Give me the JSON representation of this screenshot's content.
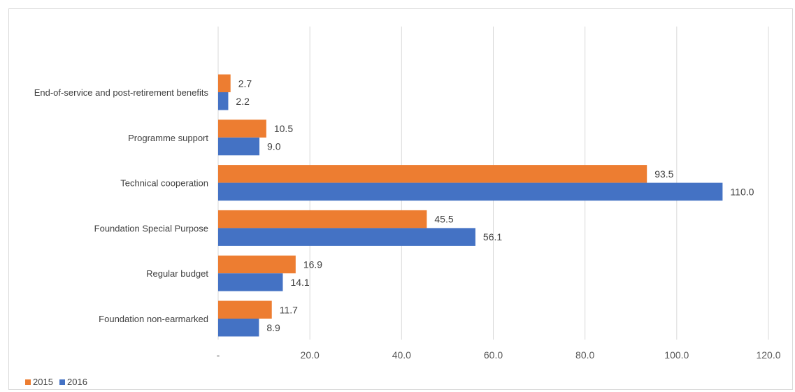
{
  "chart_data": {
    "type": "bar",
    "orientation": "horizontal",
    "categories": [
      "End-of-service and post-retirement benefits",
      "Programme support",
      "Technical cooperation",
      "Foundation Special Purpose",
      "Regular budget",
      "Foundation non-earmarked"
    ],
    "series": [
      {
        "name": "2015",
        "color": "#ED7D31",
        "values": [
          2.7,
          10.5,
          93.5,
          45.5,
          16.9,
          11.7
        ],
        "labels": [
          "2.7",
          "10.5",
          "93.5",
          "45.5",
          "16.9",
          "11.7"
        ]
      },
      {
        "name": "2016",
        "color": "#4472C4",
        "values": [
          2.2,
          9.0,
          110.0,
          56.1,
          14.1,
          8.9
        ],
        "labels": [
          "2.2",
          "9.0",
          "110.0",
          "56.1",
          "14.1",
          "8.9"
        ]
      }
    ],
    "xlim": [
      0,
      120
    ],
    "xticks": [
      0,
      20,
      40,
      60,
      80,
      100,
      120
    ],
    "xtick_labels": [
      "-",
      "20.0",
      "40.0",
      "60.0",
      "80.0",
      "100.0",
      "120.0"
    ],
    "grid": true,
    "legend": "bottom-left"
  }
}
